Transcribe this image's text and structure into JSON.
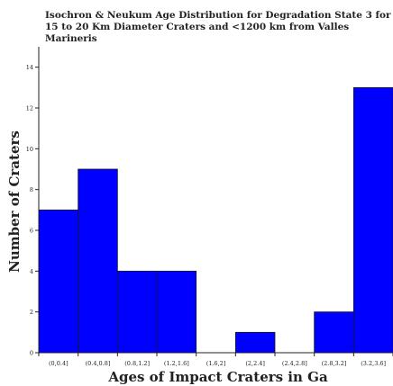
{
  "chart_data": {
    "type": "bar",
    "title_lines": [
      "Isochron & Neukum Age Distribution for Degradation State 3 for",
      "15 to 20 Km Diameter Craters and <1200 km from Valles",
      "Marineris"
    ],
    "xlabel": "Ages of Impact Craters in Ga",
    "ylabel": "Number of Craters",
    "categories": [
      "(0,0.4]",
      "(0.4,0.8]",
      "(0.8,1.2]",
      "(1.2,1.6]",
      "(1.6,2]",
      "(2,2.4]",
      "(2.4,2.8]",
      "(2.8,3.2]",
      "(3.2,3.6]"
    ],
    "values": [
      7,
      9,
      4,
      4,
      0,
      1,
      0,
      2,
      13
    ],
    "ylim": [
      0,
      15
    ],
    "yticks": [
      0,
      2,
      4,
      6,
      8,
      10,
      12,
      14
    ],
    "bar_color": "#0000ff",
    "grid": false,
    "legend": "none"
  }
}
